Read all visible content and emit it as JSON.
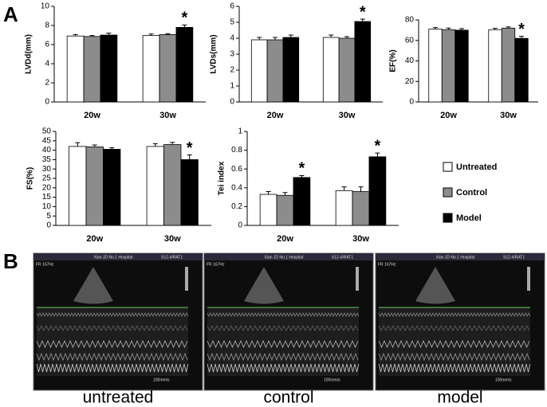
{
  "panel_labels": [
    "A",
    "B"
  ],
  "chart_data": [
    {
      "type": "bar",
      "ylabel": "LVDd(mm)",
      "categories": [
        "20w",
        "30w"
      ],
      "ylim": [
        0,
        10
      ],
      "yticks": [
        0,
        2,
        4,
        6,
        8,
        10
      ],
      "series": [
        {
          "color": "#ffffff",
          "values": [
            6.9,
            6.95
          ],
          "errors": [
            0.15,
            0.15
          ]
        },
        {
          "color": "#8c8c8c",
          "values": [
            6.85,
            7.05
          ],
          "errors": [
            0.1,
            0.1
          ]
        },
        {
          "color": "#000000",
          "values": [
            7.0,
            7.8
          ],
          "errors": [
            0.2,
            0.25
          ],
          "annotations": [
            null,
            "*"
          ]
        }
      ]
    },
    {
      "type": "bar",
      "ylabel": "LVDs(mm)",
      "categories": [
        "20w",
        "30w"
      ],
      "ylim": [
        0,
        6
      ],
      "yticks": [
        0,
        1,
        2,
        3,
        4,
        5,
        6
      ],
      "series": [
        {
          "color": "#ffffff",
          "values": [
            3.9,
            4.05
          ],
          "errors": [
            0.15,
            0.15
          ]
        },
        {
          "color": "#8c8c8c",
          "values": [
            3.9,
            4.0
          ],
          "errors": [
            0.15,
            0.1
          ]
        },
        {
          "color": "#000000",
          "values": [
            4.05,
            5.05
          ],
          "errors": [
            0.15,
            0.15
          ],
          "annotations": [
            null,
            "*"
          ]
        }
      ]
    },
    {
      "type": "bar",
      "ylabel": "EF(%)",
      "categories": [
        "20w",
        "30w"
      ],
      "ylim": [
        0,
        80
      ],
      "yticks": [
        0,
        20,
        40,
        60,
        80
      ],
      "series": [
        {
          "color": "#ffffff",
          "values": [
            71,
            70.5
          ],
          "errors": [
            1.5,
            1.2
          ]
        },
        {
          "color": "#8c8c8c",
          "values": [
            70.5,
            72
          ],
          "errors": [
            1.5,
            1.2
          ]
        },
        {
          "color": "#000000",
          "values": [
            70,
            62
          ],
          "errors": [
            1.5,
            2
          ],
          "annotations": [
            null,
            "*"
          ]
        }
      ]
    },
    {
      "type": "bar",
      "ylabel": "FS(%)",
      "categories": [
        "20w",
        "30w"
      ],
      "ylim": [
        0,
        50
      ],
      "yticks": [
        0,
        5,
        10,
        15,
        20,
        25,
        30,
        35,
        40,
        45,
        50
      ],
      "series": [
        {
          "color": "#ffffff",
          "values": [
            42,
            42
          ],
          "errors": [
            2,
            1.5
          ]
        },
        {
          "color": "#8c8c8c",
          "values": [
            41.8,
            43
          ],
          "errors": [
            1,
            1.2
          ]
        },
        {
          "color": "#000000",
          "values": [
            40.5,
            35
          ],
          "errors": [
            0.8,
            2.5
          ],
          "annotations": [
            null,
            "*"
          ]
        }
      ]
    },
    {
      "type": "bar",
      "ylabel": "Tei index",
      "categories": [
        "20w",
        "30w"
      ],
      "ylim": [
        0,
        1
      ],
      "yticks": [
        0,
        0.2,
        0.4,
        0.6,
        0.8,
        1
      ],
      "series": [
        {
          "name": "Untreated",
          "color": "#ffffff",
          "values": [
            0.33,
            0.37
          ],
          "errors": [
            0.03,
            0.04
          ]
        },
        {
          "name": "Control",
          "color": "#8c8c8c",
          "values": [
            0.32,
            0.36
          ],
          "errors": [
            0.03,
            0.05
          ]
        },
        {
          "name": "Model",
          "color": "#000000",
          "values": [
            0.51,
            0.73
          ],
          "errors": [
            0.02,
            0.04
          ],
          "annotations": [
            "*",
            "*"
          ]
        }
      ]
    }
  ],
  "images": [
    {
      "hospital": "Xian JD No.1 Hospital",
      "probe": "S12-4/RAT1",
      "frame_rate": "FR 167Hz",
      "speed": "100mm/s",
      "caption": "untreated"
    },
    {
      "hospital": "Xian JD No.1 Hospital",
      "probe": "S12-4/RAT1",
      "frame_rate": "FR 167Hz",
      "speed": "100mm/s",
      "caption": "control"
    },
    {
      "hospital": "Xian JD No.1 Hospital",
      "probe": "S12-4/RAT1",
      "frame_rate": "FR 167Hz",
      "speed": "100mm/s",
      "caption": "model"
    }
  ]
}
